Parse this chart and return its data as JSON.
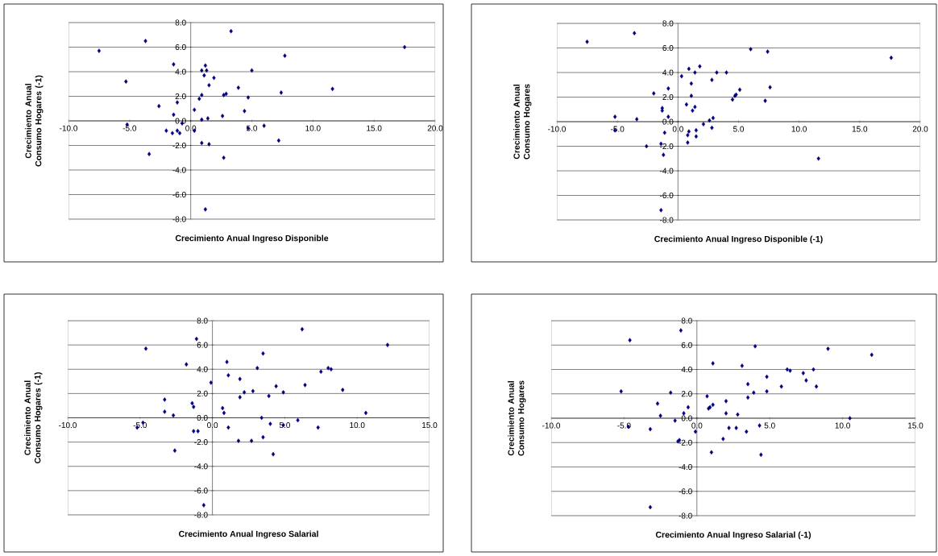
{
  "chart_data": [
    {
      "type": "scatter",
      "xlabel": "Crecimiento Anual Ingreso Disponible",
      "ylabel": "Crecimiento Anual Consumo Hogares (-1)",
      "color": "#000080",
      "marker": "diamond",
      "grid": "y",
      "xlim": [
        -10,
        20
      ],
      "ylim": [
        -8,
        8
      ],
      "xticks": [
        {
          "value": -10,
          "label": "-10.0"
        },
        {
          "value": -5,
          "label": "-5.0"
        },
        {
          "value": 0,
          "label": "0.0"
        },
        {
          "value": 5,
          "label": "5.0"
        },
        {
          "value": 10,
          "label": "10.0"
        },
        {
          "value": 15,
          "label": "15.0"
        },
        {
          "value": 20,
          "label": "20.0"
        }
      ],
      "yticks": [
        {
          "value": -8,
          "label": "-8.0"
        },
        {
          "value": -6,
          "label": "-6.0"
        },
        {
          "value": -4,
          "label": "-4.0"
        },
        {
          "value": -2,
          "label": "-2.0"
        },
        {
          "value": 0,
          "label": "0.0"
        },
        {
          "value": 2,
          "label": "2.0"
        },
        {
          "value": 4,
          "label": "4.0"
        },
        {
          "value": 6,
          "label": "6.0"
        },
        {
          "value": 8,
          "label": "8.0"
        }
      ],
      "x": [
        -7.5,
        -3.7,
        -5.3,
        -5.2,
        -3.4,
        -2.6,
        -2.0,
        -1.4,
        -1.4,
        -1.1,
        -1.5,
        -1.1,
        -0.9,
        -0.7,
        0.3,
        0.3,
        0.7,
        0.9,
        0.9,
        0.9,
        0.9,
        1.1,
        1.2,
        1.3,
        1.4,
        1.5,
        1.5,
        1.9,
        2.6,
        2.7,
        2.9,
        2.7,
        3.3,
        3.9,
        4.4,
        4.7,
        4.7,
        5.0,
        6.0,
        7.2,
        7.4,
        7.7,
        11.6,
        17.5,
        1.2
      ],
      "values": [
        5.7,
        6.5,
        3.2,
        -0.3,
        -2.7,
        1.2,
        -0.8,
        4.6,
        0.5,
        1.5,
        -1.0,
        -0.8,
        -1.0,
        -0.2,
        0.9,
        -0.8,
        1.8,
        2.1,
        0.1,
        -1.8,
        4.1,
        3.7,
        4.5,
        4.1,
        0.2,
        2.9,
        -1.9,
        3.5,
        0.4,
        2.1,
        2.2,
        -3.0,
        7.3,
        2.7,
        0.8,
        1.9,
        -0.6,
        4.1,
        -0.4,
        -1.6,
        2.3,
        5.3,
        2.6,
        6.0,
        -7.2
      ]
    },
    {
      "type": "scatter",
      "xlabel": "Crecimiento Anual Ingreso Disponible (-1)",
      "ylabel": "Crecimiento Anual Consumo Hogares",
      "color": "#000080",
      "marker": "diamond",
      "grid": "y",
      "xlim": [
        -10,
        20
      ],
      "ylim": [
        -8,
        8
      ],
      "xticks": [
        {
          "value": -10,
          "label": "-10.0"
        },
        {
          "value": -5,
          "label": "-5.0"
        },
        {
          "value": 0,
          "label": "0.0"
        },
        {
          "value": 5,
          "label": "5.0"
        },
        {
          "value": 10,
          "label": "10.0"
        },
        {
          "value": 15,
          "label": "15.0"
        },
        {
          "value": 20,
          "label": "20.0"
        }
      ],
      "yticks": [
        {
          "value": -8,
          "label": "-8.0"
        },
        {
          "value": -6,
          "label": "-6.0"
        },
        {
          "value": -4,
          "label": "-4.0"
        },
        {
          "value": -2,
          "label": "-2.0"
        },
        {
          "value": 0,
          "label": "0.0"
        },
        {
          "value": 2,
          "label": "2.0"
        },
        {
          "value": 4,
          "label": "4.0"
        },
        {
          "value": 6,
          "label": "6.0"
        },
        {
          "value": 8,
          "label": "8.0"
        }
      ],
      "x": [
        -7.5,
        -3.6,
        -5.2,
        -5.2,
        -3.4,
        -2.0,
        -2.6,
        -1.3,
        -1.3,
        -1.4,
        -1.2,
        -1.1,
        -0.8,
        -0.8,
        -1.4,
        0.3,
        0.7,
        0.9,
        0.9,
        0.8,
        0.8,
        1.1,
        1.1,
        1.2,
        1.4,
        1.4,
        1.5,
        1.5,
        1.8,
        2.1,
        2.6,
        2.9,
        2.8,
        2.8,
        3.2,
        4.0,
        4.5,
        4.7,
        4.8,
        5.1,
        6.0,
        7.4,
        7.2,
        7.6,
        11.6,
        17.6
      ],
      "values": [
        6.5,
        7.2,
        0.4,
        -0.7,
        0.2,
        2.3,
        -2.0,
        1.1,
        0.9,
        -1.8,
        -2.7,
        -0.9,
        2.7,
        0.4,
        -7.2,
        3.7,
        1.4,
        4.3,
        -0.8,
        -1.1,
        -1.7,
        3.1,
        2.1,
        0.9,
        1.2,
        4.0,
        -0.7,
        -1.2,
        4.5,
        -0.2,
        0.1,
        0.3,
        -0.5,
        3.4,
        4.0,
        4.0,
        1.8,
        2.1,
        2.2,
        2.6,
        5.9,
        5.7,
        1.7,
        2.8,
        -3.0,
        5.2
      ]
    },
    {
      "type": "scatter",
      "xlabel": "Crecimiento Anual Ingreso Salarial",
      "ylabel": "Crecimiento Anual Consumo Hogares (-1)",
      "color": "#000080",
      "marker": "diamond",
      "grid": "y",
      "xlim": [
        -10,
        15
      ],
      "ylim": [
        -8,
        8
      ],
      "xticks": [
        {
          "value": -10,
          "label": "-10.0"
        },
        {
          "value": -5,
          "label": "-5.0"
        },
        {
          "value": 0,
          "label": "0.0"
        },
        {
          "value": 5,
          "label": "5.0"
        },
        {
          "value": 10,
          "label": "10.0"
        },
        {
          "value": 15,
          "label": "15.0"
        }
      ],
      "yticks": [
        {
          "value": -8,
          "label": "-8.0"
        },
        {
          "value": -6,
          "label": "-6.0"
        },
        {
          "value": -4,
          "label": "-4.0"
        },
        {
          "value": -2,
          "label": "-2.0"
        },
        {
          "value": 0,
          "label": "0.0"
        },
        {
          "value": 2,
          "label": "2.0"
        },
        {
          "value": 4,
          "label": "4.0"
        },
        {
          "value": 6,
          "label": "6.0"
        },
        {
          "value": 8,
          "label": "8.0"
        }
      ],
      "x": [
        -4.6,
        -5.2,
        -4.8,
        -3.3,
        -3.3,
        -2.7,
        -2.6,
        -1.8,
        -1.1,
        -1.4,
        -1.3,
        -1.3,
        -1.0,
        -0.6,
        -0.1,
        0.7,
        0.8,
        1.0,
        1.1,
        1.1,
        1.8,
        1.9,
        1.9,
        2.2,
        2.7,
        2.8,
        3.1,
        3.4,
        3.5,
        3.5,
        3.9,
        4.0,
        4.2,
        4.4,
        4.9,
        4.9,
        5.9,
        6.2,
        6.4,
        7.3,
        7.5,
        8.0,
        8.2,
        9.0,
        10.6,
        12.1
      ],
      "values": [
        5.7,
        -0.8,
        -0.4,
        1.5,
        0.5,
        0.2,
        -2.7,
        4.4,
        6.5,
        1.2,
        0.9,
        -1.1,
        -1.1,
        -7.2,
        2.9,
        0.8,
        0.4,
        4.6,
        3.5,
        -0.8,
        -1.9,
        1.7,
        3.2,
        2.1,
        -1.9,
        2.2,
        4.1,
        0.0,
        -1.6,
        5.3,
        1.8,
        -0.5,
        -3.0,
        2.6,
        2.1,
        -0.6,
        -0.2,
        7.3,
        2.7,
        -0.8,
        3.8,
        4.1,
        4.0,
        2.3,
        0.4,
        6.0
      ]
    },
    {
      "type": "scatter",
      "xlabel": "Crecimiento Anual Ingreso Salarial (-1)",
      "ylabel": "Crecimiento Anual Consumo Hogares",
      "color": "#000080",
      "marker": "diamond",
      "grid": "y",
      "xlim": [
        -10,
        15
      ],
      "ylim": [
        -8,
        8
      ],
      "xticks": [
        {
          "value": -10,
          "label": "-10.0"
        },
        {
          "value": -5,
          "label": "-5.0"
        },
        {
          "value": 0,
          "label": "0.0"
        },
        {
          "value": 5,
          "label": "5.0"
        },
        {
          "value": 10,
          "label": "10.0"
        },
        {
          "value": 15,
          "label": "15.0"
        }
      ],
      "yticks": [
        {
          "value": -8,
          "label": "-8.0"
        },
        {
          "value": -6,
          "label": "-6.0"
        },
        {
          "value": -4,
          "label": "-4.0"
        },
        {
          "value": -2,
          "label": "-2.0"
        },
        {
          "value": 0,
          "label": "0.0"
        },
        {
          "value": 2,
          "label": "2.0"
        },
        {
          "value": 4,
          "label": "4.0"
        },
        {
          "value": 6,
          "label": "6.0"
        },
        {
          "value": 8,
          "label": "8.0"
        }
      ],
      "x": [
        -4.6,
        -5.2,
        -4.7,
        -3.2,
        -2.7,
        -2.5,
        -3.2,
        -1.8,
        -1.5,
        -1.3,
        -1.2,
        -1.1,
        -0.9,
        -0.6,
        -0.1,
        0.7,
        0.8,
        0.9,
        1.1,
        1.1,
        1.0,
        1.8,
        2.0,
        2.0,
        2.2,
        2.7,
        2.8,
        3.1,
        3.4,
        3.5,
        3.5,
        3.9,
        4.0,
        4.3,
        4.4,
        4.8,
        4.8,
        5.8,
        6.2,
        6.4,
        7.3,
        7.5,
        8.0,
        8.2,
        9.0,
        10.5,
        12.0
      ],
      "values": [
        6.4,
        2.2,
        -0.7,
        -0.9,
        1.2,
        0.2,
        -7.3,
        2.1,
        -0.2,
        -1.9,
        -1.8,
        7.2,
        0.4,
        0.9,
        -1.1,
        1.8,
        0.8,
        0.9,
        1.1,
        4.5,
        -2.8,
        -1.7,
        1.4,
        0.4,
        -0.8,
        -0.8,
        0.3,
        4.3,
        -1.1,
        1.7,
        2.8,
        2.1,
        5.9,
        -0.6,
        -3.0,
        3.4,
        2.2,
        2.6,
        4.0,
        3.9,
        3.7,
        3.1,
        4.0,
        2.6,
        5.7,
        0.0,
        5.2
      ]
    }
  ]
}
